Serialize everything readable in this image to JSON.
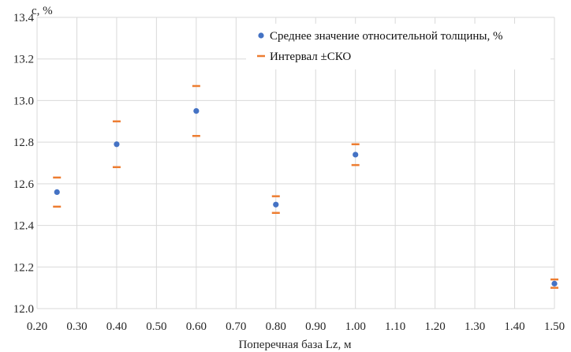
{
  "chart_data": {
    "type": "scatter",
    "title": "",
    "xlabel": "Поперечная база Lz, м",
    "ylabel": "c, %",
    "xlim": [
      0.2,
      1.5
    ],
    "ylim": [
      12.0,
      13.4
    ],
    "xticks": [
      0.2,
      0.3,
      0.4,
      0.5,
      0.6,
      0.7,
      0.8,
      0.9,
      1.0,
      1.1,
      1.2,
      1.3,
      1.4,
      1.5
    ],
    "xtick_labels": [
      "0.20",
      "0.30",
      "0.40",
      "0.50",
      "0.60",
      "0.70",
      "0.80",
      "0.90",
      "1.00",
      "1.10",
      "1.20",
      "1.30",
      "1.40",
      "1.50"
    ],
    "yticks": [
      12.0,
      12.2,
      12.4,
      12.6,
      12.8,
      13.0,
      13.2,
      13.4
    ],
    "ytick_labels": [
      "12.0",
      "12.2",
      "12.4",
      "12.6",
      "12.8",
      "13.0",
      "13.2",
      "13.4"
    ],
    "grid": true,
    "legend_position": "top-right",
    "series": [
      {
        "name": "Среднее значение относительной толщины, %",
        "marker": "circle",
        "color": "#4472c4",
        "x": [
          0.25,
          0.4,
          0.6,
          0.8,
          1.0,
          1.5
        ],
        "y": [
          12.56,
          12.79,
          12.95,
          12.5,
          12.74,
          12.12
        ]
      },
      {
        "name": "Интервал ±СКО",
        "marker": "dash",
        "color": "#ed7d31",
        "x": [
          0.25,
          0.4,
          0.6,
          0.8,
          1.0,
          1.5
        ],
        "low": [
          12.49,
          12.68,
          12.83,
          12.46,
          12.69,
          12.1
        ],
        "high": [
          12.63,
          12.9,
          13.07,
          12.54,
          12.79,
          12.14
        ]
      }
    ]
  }
}
